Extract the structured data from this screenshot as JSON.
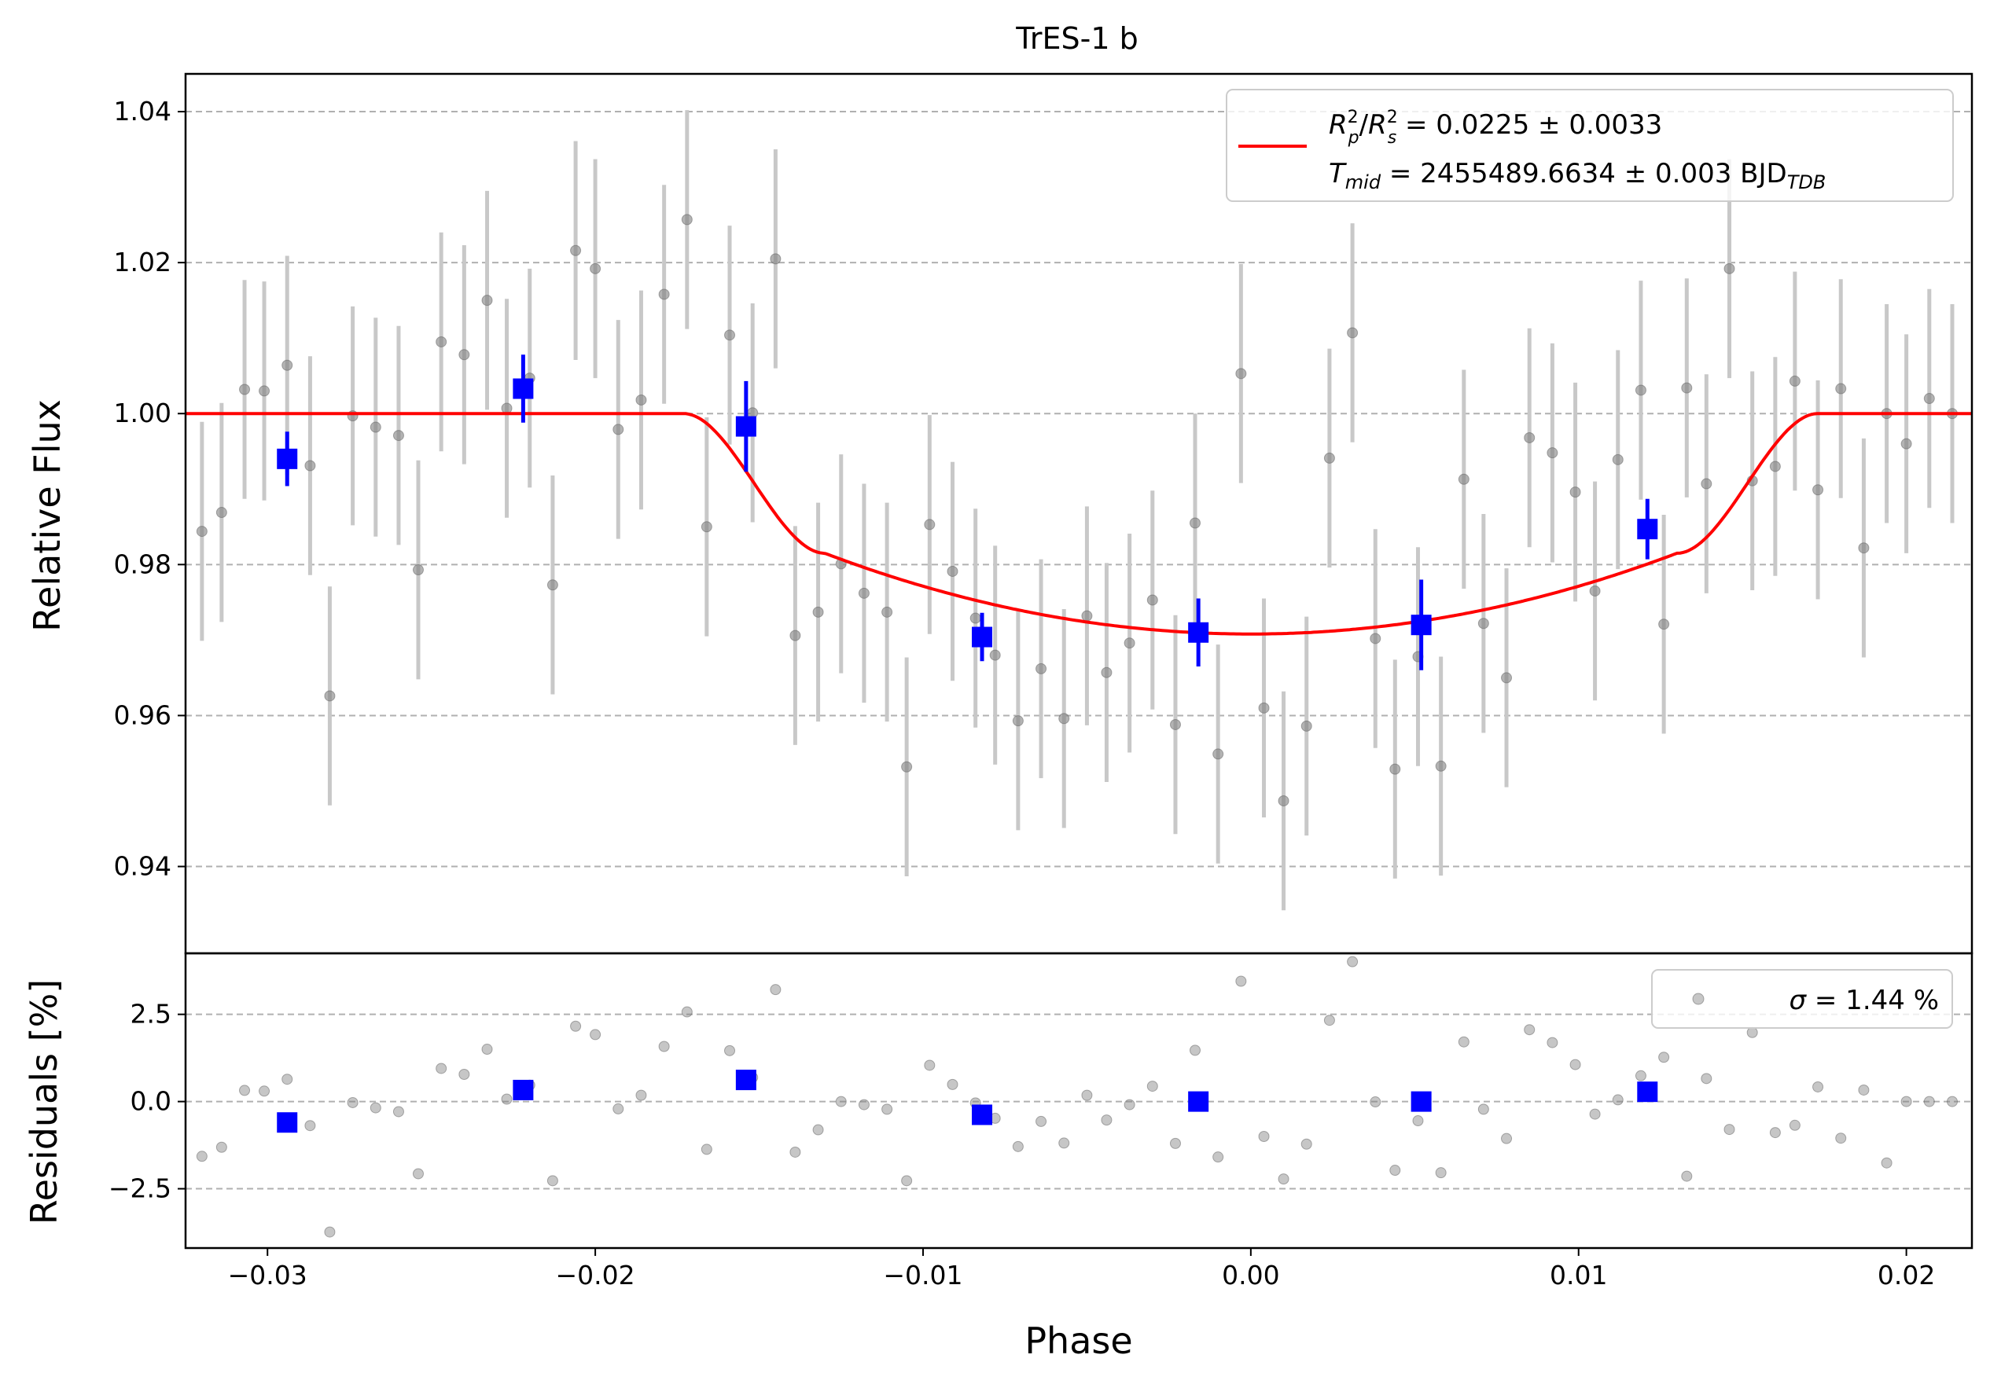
{
  "chart_data": [
    {
      "type": "scatter",
      "panel": "top",
      "title": "TrES-1 b",
      "ylabel": "Relative Flux",
      "xlim": [
        -0.0325,
        0.022
      ],
      "ylim": [
        0.9285,
        1.045
      ],
      "yticks": [
        0.94,
        0.96,
        0.98,
        1.0,
        1.02,
        1.04
      ],
      "ytick_labels": [
        "0.94",
        "0.96",
        "0.98",
        "1.00",
        "1.02",
        "1.04"
      ],
      "grid": "y dashed",
      "legend_position": "top-right",
      "legend": {
        "rp_label": "Rp²/Rs²",
        "rp_eq": " = 0.0225 ± 0.0033",
        "tmid_label": "Tmid",
        "tmid_eq": " = 2455489.6634 ± 0.003 BJD",
        "tmid_sub": "TDB"
      },
      "model": {
        "name": "transit model",
        "color": "#ff0000",
        "baseline": 1.0,
        "depth_min": 0.9708,
        "t1": -0.0173,
        "t2": -0.013,
        "t3": 0.013,
        "t4": 0.0173,
        "ingress_flux": 0.9815
      },
      "raw_points": {
        "color": "#808080",
        "err": 0.0145,
        "x": [
          -0.0326,
          -0.032,
          -0.0314,
          -0.0307,
          -0.0301,
          -0.0294,
          -0.0287,
          -0.0281,
          -0.0274,
          -0.0267,
          -0.026,
          -0.0254,
          -0.0247,
          -0.024,
          -0.0233,
          -0.0227,
          -0.022,
          -0.0213,
          -0.0206,
          -0.02,
          -0.0193,
          -0.0186,
          -0.0179,
          -0.0172,
          -0.0166,
          -0.0159,
          -0.0152,
          -0.0145,
          -0.0139,
          -0.0132,
          -0.0125,
          -0.0118,
          -0.0111,
          -0.0105,
          -0.0098,
          -0.0091,
          -0.0084,
          -0.0078,
          -0.0071,
          -0.0064,
          -0.0057,
          -0.005,
          -0.0044,
          -0.0037,
          -0.003,
          -0.0023,
          -0.0017,
          -0.001,
          -0.0003,
          0.0004,
          0.001,
          0.0017,
          0.0024,
          0.0031,
          0.0038,
          0.0044,
          0.0051,
          0.0058,
          0.0065,
          0.0071,
          0.0078,
          0.0085,
          0.0092,
          0.0099,
          0.0105,
          0.0112,
          0.0119,
          0.0126,
          0.0133,
          0.0139,
          0.0146,
          0.0153,
          0.016,
          0.0166,
          0.0173,
          0.018,
          0.0187,
          0.0194,
          0.02,
          0.0207,
          0.0214,
          0.0221
        ],
        "y": [
          1.0,
          0.9844,
          0.9869,
          1.0032,
          1.003,
          1.0064,
          0.9931,
          0.9626,
          0.9997,
          0.9982,
          0.9971,
          0.9793,
          1.0095,
          1.0078,
          1.015,
          1.0007,
          1.0047,
          0.9773,
          1.0216,
          1.0192,
          0.9979,
          1.0018,
          1.0158,
          1.0257,
          0.985,
          1.0104,
          1.0001,
          1.0205,
          0.9706,
          0.9737,
          0.9801,
          0.9762,
          0.9737,
          0.9532,
          0.9853,
          0.9791,
          0.9729,
          0.968,
          0.9593,
          0.9662,
          0.9596,
          0.9732,
          0.9657,
          0.9696,
          0.9753,
          0.9588,
          0.9855,
          0.9549,
          1.0053,
          0.961,
          0.9487,
          0.9586,
          0.9941,
          1.0107,
          0.9702,
          0.9529,
          0.9678,
          0.9533,
          0.9913,
          0.9722,
          0.965,
          0.9968,
          0.9948,
          0.9896,
          0.9765,
          0.9939,
          1.0031,
          0.9721,
          1.0034,
          0.9907,
          1.0192,
          0.9911,
          0.993,
          1.0043,
          0.9899,
          1.0033,
          0.9822,
          1.0,
          0.996,
          1.002,
          1.0,
          1.0
        ],
        "resid": [
          -0.02,
          -1.57,
          -1.31,
          0.32,
          0.3,
          0.64,
          -0.69,
          -3.74,
          -0.03,
          -0.18,
          -0.29,
          -2.07,
          0.95,
          0.78,
          1.5,
          0.07,
          0.47,
          -2.27,
          2.16,
          1.92,
          -0.21,
          0.18,
          1.58,
          2.57,
          -1.37,
          1.46,
          0.69,
          3.21,
          -1.45,
          -0.81,
          0.0,
          -0.09,
          -0.22,
          -2.27,
          1.04,
          0.49,
          -0.04,
          -0.48,
          -1.29,
          -0.57,
          -1.19,
          0.18,
          -0.53,
          -0.09,
          0.44,
          -1.2,
          1.47,
          -1.59,
          3.45,
          -1.0,
          -2.22,
          -1.22,
          2.33,
          4.01,
          -0.01,
          -1.97,
          -0.55,
          -2.04,
          1.71,
          -0.22,
          -1.06,
          2.06,
          1.69,
          1.06,
          -0.36,
          0.05,
          0.74,
          1.27,
          -2.14,
          0.66,
          -0.8,
          1.98,
          -0.89,
          -0.68,
          0.42,
          -1.05,
          0.33,
          -1.76,
          0.0,
          0.0,
          0.0,
          0.0
        ]
      },
      "binned_points": {
        "color": "#0000ff",
        "x": [
          -0.0294,
          -0.0222,
          -0.0154,
          -0.0082,
          -0.0016,
          0.0052,
          0.0121
        ],
        "y": [
          0.994,
          1.0033,
          0.9983,
          0.9704,
          0.971,
          0.972,
          0.9847
        ],
        "err": [
          0.0036,
          0.0045,
          0.006,
          0.0032,
          0.0045,
          0.006,
          0.004
        ]
      }
    },
    {
      "type": "scatter",
      "panel": "bottom",
      "xlabel": "Phase",
      "ylabel": "Residuals [%]",
      "xlim": [
        -0.0325,
        0.022
      ],
      "ylim": [
        -4.2,
        4.25
      ],
      "yticks": [
        -2.5,
        0.0,
        2.5
      ],
      "ytick_labels": [
        "−2.5",
        "0.0",
        "2.5"
      ],
      "xticks": [
        -0.03,
        -0.02,
        -0.01,
        0.0,
        0.01,
        0.02
      ],
      "xtick_labels": [
        "−0.03",
        "−0.02",
        "−0.01",
        "0.00",
        "0.01",
        "0.02"
      ],
      "grid": "y dashed",
      "legend_position": "top-right",
      "legend": {
        "sigma_label": "σ",
        "sigma_eq": " = 1.44 %"
      },
      "binned_residuals": [
        -0.6,
        0.33,
        0.62,
        -0.38,
        0.0,
        0.0,
        0.28
      ]
    }
  ]
}
